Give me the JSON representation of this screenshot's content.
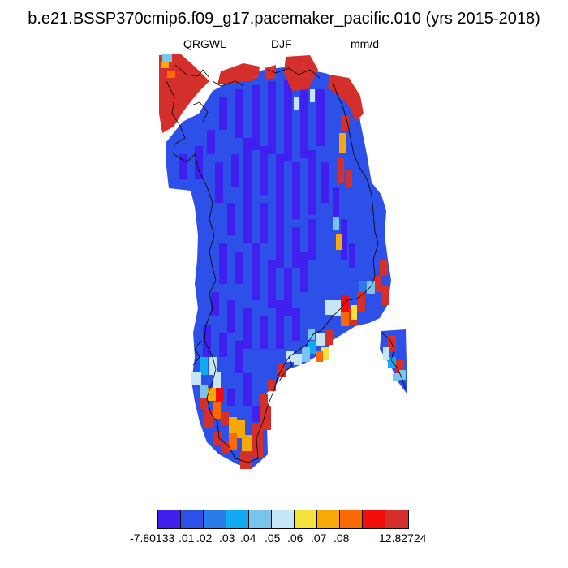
{
  "title": "b.e21.BSSP370cmip6.f09_g17.pacemaker_pacific.010 (yrs 2015-2018)",
  "subtitles": {
    "left": "QRGWL",
    "center": "DJF",
    "right": "mm/d"
  },
  "colors": {
    "c0": "#4020ef",
    "c1": "#2d50e8",
    "c2": "#2a7de8",
    "c3": "#10aaf0",
    "c4": "#78c4ec",
    "c5": "#c6e6f6",
    "c6": "#f6e23c",
    "c7": "#f7a908",
    "c8": "#f96a05",
    "c9": "#f20d0b",
    "c10": "#d42f2a",
    "coast": "#000000"
  },
  "colorbar": {
    "colors": [
      "#4020ef",
      "#2d50e8",
      "#2a7de8",
      "#10aaf0",
      "#78c4ec",
      "#c6e6f6",
      "#f6e23c",
      "#f7a908",
      "#f96a05",
      "#f20d0b",
      "#d42f2a"
    ],
    "labels": [
      "-7.80133",
      ".01",
      ".02",
      ".03",
      ".04",
      ".05",
      ".06",
      ".07",
      ".08",
      "12.82724"
    ]
  },
  "chart_data": {
    "type": "heatmap",
    "title": "b.e21.BSSP370cmip6.f09_g17.pacemaker_pacific.010 (yrs 2015-2018)",
    "variable": "QRGWL",
    "season": "DJF",
    "units": "mm/d",
    "levels": [
      -7.80133,
      0.01,
      0.02,
      0.03,
      0.04,
      0.05,
      0.06,
      0.07,
      0.08,
      12.82724
    ],
    "region": "Greenland",
    "description_values": "Interior mostly below 0.01 mm/d; coastal margins mostly above 0.08 mm/d with scattered 0.03-0.08 cells near the southern and eastern coasts"
  }
}
